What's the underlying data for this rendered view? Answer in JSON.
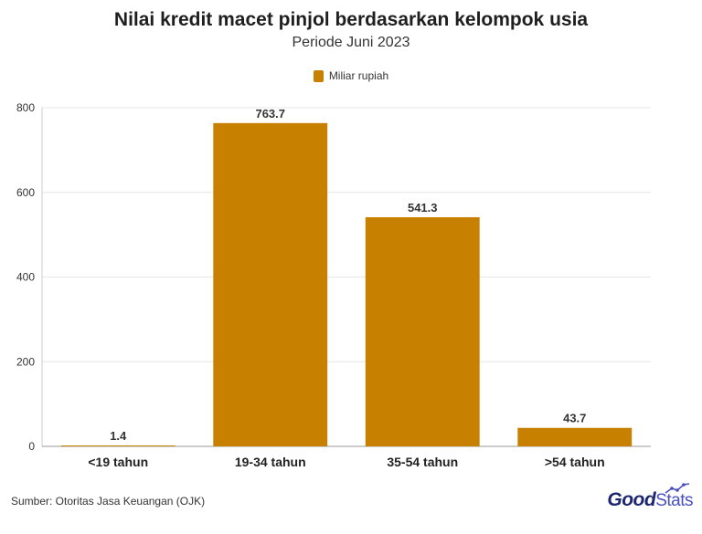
{
  "title": "Nilai kredit macet pinjol berdasarkan kelompok usia",
  "subtitle": "Periode Juni 2023",
  "legend": {
    "label": "Miliar rupiah"
  },
  "colors": {
    "bar": "#c88000",
    "grid": "#e6e6e6",
    "axis": "#999999"
  },
  "chart_data": {
    "type": "bar",
    "categories": [
      "<19 tahun",
      "19-34 tahun",
      "35-54 tahun",
      ">54 tahun"
    ],
    "series": [
      {
        "name": "Miliar rupiah",
        "values": [
          1.4,
          763.7,
          541.3,
          43.7
        ]
      }
    ],
    "data_labels": [
      "1.4",
      "763.7",
      "541.3",
      "43.7"
    ],
    "y_ticks": [
      0,
      200,
      400,
      600,
      800
    ],
    "ylim": [
      0,
      800
    ],
    "title": "Nilai kredit macet pinjol berdasarkan kelompok usia",
    "subtitle": "Periode Juni 2023",
    "grid": true,
    "legend_position": "top-center"
  },
  "footer": {
    "source": "Sumber: Otoritas Jasa Keuangan (OJK)",
    "logo_part1": "Good",
    "logo_part2": "Stats"
  }
}
